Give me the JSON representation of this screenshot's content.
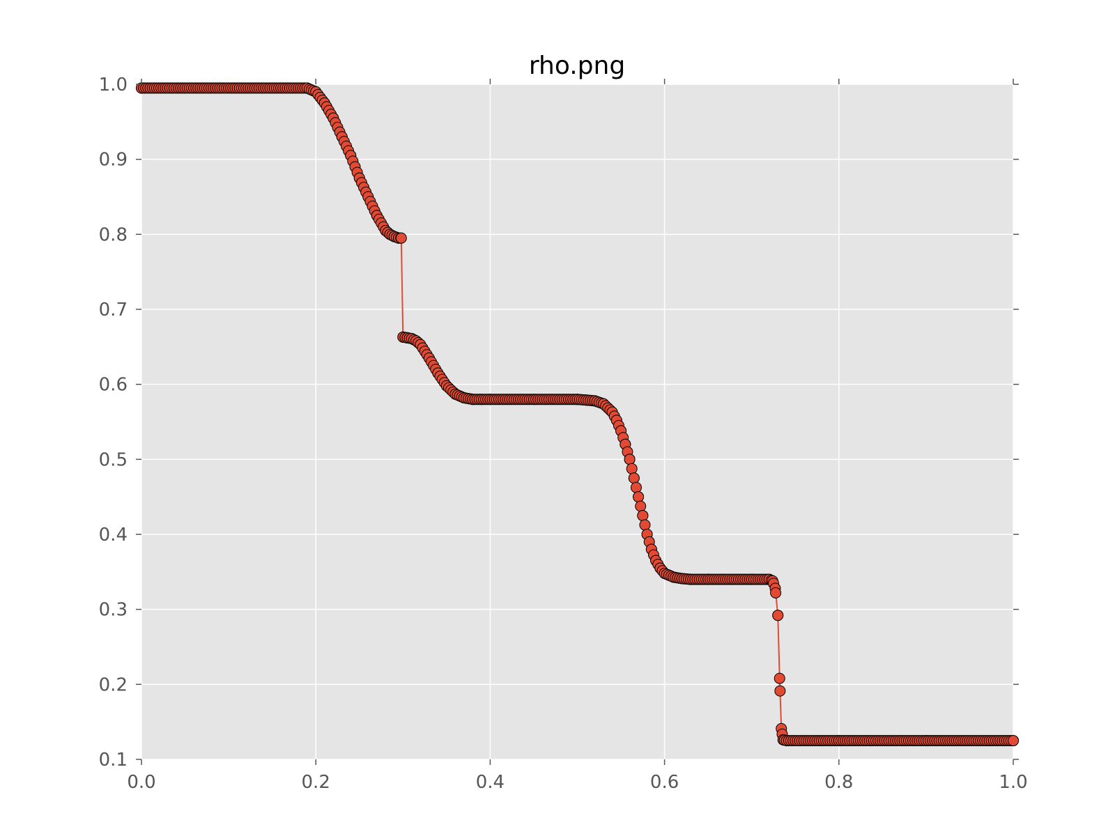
{
  "chart_data": {
    "type": "line",
    "title": "rho.png",
    "xlabel": "",
    "ylabel": "",
    "xlim": [
      0.0,
      1.0
    ],
    "ylim": [
      0.1,
      1.0
    ],
    "xticks": [
      "0.0",
      "0.2",
      "0.4",
      "0.6",
      "0.8",
      "1.0"
    ],
    "yticks": [
      "1.0",
      "0.9",
      "0.8",
      "0.7",
      "0.6",
      "0.5",
      "0.4",
      "0.3",
      "0.2",
      "0.1"
    ],
    "grid": true,
    "colors": {
      "marker": "#e24a33",
      "line": "#e24a33",
      "background": "#e5e5e5",
      "grid": "#ffffff"
    },
    "series": [
      {
        "name": "rho",
        "marker": "circle",
        "x": [
          0.0,
          0.19,
          0.2,
          0.21,
          0.22,
          0.23,
          0.24,
          0.25,
          0.26,
          0.27,
          0.28,
          0.285,
          0.29,
          0.295,
          0.298,
          0.3,
          0.305,
          0.31,
          0.315,
          0.32,
          0.33,
          0.34,
          0.35,
          0.36,
          0.37,
          0.38,
          0.39,
          0.4,
          0.45,
          0.5,
          0.51,
          0.52,
          0.53,
          0.54,
          0.545,
          0.55,
          0.555,
          0.56,
          0.565,
          0.57,
          0.575,
          0.58,
          0.585,
          0.59,
          0.595,
          0.6,
          0.61,
          0.62,
          0.63,
          0.65,
          0.7,
          0.72,
          0.724,
          0.727,
          0.73,
          0.732,
          0.734,
          0.736,
          0.74,
          0.8,
          0.9,
          1.0
        ],
        "y": [
          0.995,
          0.995,
          0.99,
          0.975,
          0.955,
          0.93,
          0.905,
          0.875,
          0.85,
          0.825,
          0.805,
          0.8,
          0.797,
          0.795,
          0.795,
          0.663,
          0.662,
          0.661,
          0.658,
          0.653,
          0.635,
          0.615,
          0.598,
          0.587,
          0.582,
          0.58,
          0.58,
          0.58,
          0.58,
          0.58,
          0.579,
          0.578,
          0.574,
          0.563,
          0.552,
          0.538,
          0.52,
          0.5,
          0.475,
          0.45,
          0.425,
          0.4,
          0.38,
          0.365,
          0.355,
          0.348,
          0.343,
          0.341,
          0.34,
          0.34,
          0.34,
          0.34,
          0.338,
          0.328,
          0.292,
          0.208,
          0.141,
          0.126,
          0.125,
          0.125,
          0.125,
          0.125
        ]
      }
    ]
  }
}
